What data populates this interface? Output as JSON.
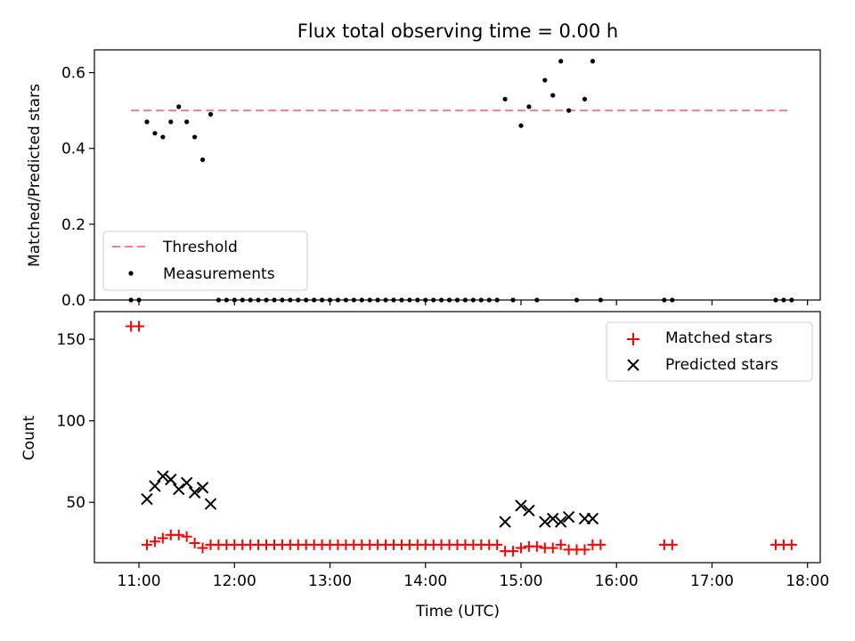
{
  "chart_data": [
    {
      "type": "scatter",
      "title": "Flux total observing time = 0.00 h",
      "xlabel": "",
      "ylabel": "Matched/Predicted stars",
      "xlim": [
        "10:32",
        "18:08"
      ],
      "ylim": [
        0,
        0.66
      ],
      "yticks": [
        0.0,
        0.2,
        0.4,
        0.6
      ],
      "ytick_labels": [
        "0.0",
        "0.2",
        "0.4",
        "0.6"
      ],
      "grid": false,
      "legend_position": "lower-left",
      "legend": [
        "Threshold",
        "Measurements"
      ],
      "series": [
        {
          "name": "Threshold",
          "kind": "dashed-line",
          "color": "#f08080",
          "x": [
            "10:55",
            "17:50"
          ],
          "y": [
            0.5,
            0.5
          ]
        },
        {
          "name": "Measurements",
          "kind": "points",
          "color": "#000000",
          "x": [
            "10:55",
            "11:00",
            "11:05",
            "11:10",
            "11:15",
            "11:20",
            "11:25",
            "11:30",
            "11:35",
            "11:40",
            "11:45",
            "11:50",
            "11:55",
            "12:00",
            "12:05",
            "12:10",
            "12:15",
            "12:20",
            "12:25",
            "12:30",
            "12:35",
            "12:40",
            "12:45",
            "12:50",
            "12:55",
            "13:00",
            "13:05",
            "13:10",
            "13:15",
            "13:20",
            "13:25",
            "13:30",
            "13:35",
            "13:40",
            "13:45",
            "13:50",
            "13:55",
            "14:00",
            "14:05",
            "14:10",
            "14:15",
            "14:20",
            "14:25",
            "14:30",
            "14:35",
            "14:40",
            "14:45",
            "14:50",
            "14:55",
            "15:00",
            "15:05",
            "15:10",
            "15:15",
            "15:20",
            "15:25",
            "15:30",
            "15:35",
            "15:40",
            "15:45",
            "15:50",
            "16:30",
            "16:35",
            "17:40",
            "17:45",
            "17:50"
          ],
          "y": [
            0,
            0,
            0.47,
            0.44,
            0.43,
            0.47,
            0.51,
            0.47,
            0.43,
            0.37,
            0.49,
            0,
            0,
            0,
            0,
            0,
            0,
            0,
            0,
            0,
            0,
            0,
            0,
            0,
            0,
            0,
            0,
            0,
            0,
            0,
            0,
            0,
            0,
            0,
            0,
            0,
            0,
            0,
            0,
            0,
            0,
            0,
            0,
            0,
            0,
            0,
            0,
            0.53,
            0,
            0.46,
            0.51,
            0,
            0.58,
            0.54,
            0.63,
            0.5,
            0,
            0.53,
            0.63,
            0,
            0,
            0,
            0,
            0,
            0
          ]
        }
      ]
    },
    {
      "type": "scatter",
      "title": "",
      "xlabel": "Time (UTC)",
      "ylabel": "Count",
      "xlim": [
        "10:32",
        "18:08"
      ],
      "ylim": [
        13,
        167
      ],
      "yticks": [
        50,
        100,
        150
      ],
      "ytick_labels": [
        "50",
        "100",
        "150"
      ],
      "xticks": [
        "11:00",
        "12:00",
        "13:00",
        "14:00",
        "15:00",
        "16:00",
        "17:00",
        "18:00"
      ],
      "xtick_labels": [
        "11:00",
        "12:00",
        "13:00",
        "14:00",
        "15:00",
        "16:00",
        "17:00",
        "18:00"
      ],
      "grid": false,
      "legend_position": "upper-right",
      "legend": [
        "Matched stars",
        "Predicted stars"
      ],
      "series": [
        {
          "name": "Matched stars",
          "kind": "plus",
          "color": "#ff0000",
          "x": [
            "10:55",
            "11:00",
            "11:05",
            "11:10",
            "11:15",
            "11:20",
            "11:25",
            "11:30",
            "11:35",
            "11:40",
            "11:45",
            "11:50",
            "11:55",
            "12:00",
            "12:05",
            "12:10",
            "12:15",
            "12:20",
            "12:25",
            "12:30",
            "12:35",
            "12:40",
            "12:45",
            "12:50",
            "12:55",
            "13:00",
            "13:05",
            "13:10",
            "13:15",
            "13:20",
            "13:25",
            "13:30",
            "13:35",
            "13:40",
            "13:45",
            "13:50",
            "13:55",
            "14:00",
            "14:05",
            "14:10",
            "14:15",
            "14:20",
            "14:25",
            "14:30",
            "14:35",
            "14:40",
            "14:45",
            "14:50",
            "14:55",
            "15:00",
            "15:05",
            "15:10",
            "15:15",
            "15:20",
            "15:25",
            "15:30",
            "15:35",
            "15:40",
            "15:45",
            "15:50",
            "16:30",
            "16:35",
            "17:40",
            "17:45",
            "17:50"
          ],
          "y": [
            158,
            158,
            24,
            26,
            28,
            30,
            30,
            29,
            25,
            22,
            24,
            24,
            24,
            24,
            24,
            24,
            24,
            24,
            24,
            24,
            24,
            24,
            24,
            24,
            24,
            24,
            24,
            24,
            24,
            24,
            24,
            24,
            24,
            24,
            24,
            24,
            24,
            24,
            24,
            24,
            24,
            24,
            24,
            24,
            24,
            24,
            24,
            20,
            20,
            22,
            23,
            23,
            22,
            22,
            24,
            21,
            21,
            21,
            24,
            24,
            24,
            24,
            24,
            24,
            24
          ]
        },
        {
          "name": "Predicted stars",
          "kind": "cross",
          "color": "#000000",
          "x": [
            "11:05",
            "11:10",
            "11:15",
            "11:20",
            "11:25",
            "11:30",
            "11:35",
            "11:40",
            "11:45",
            "14:50",
            "15:00",
            "15:05",
            "15:15",
            "15:20",
            "15:25",
            "15:30",
            "15:40",
            "15:45"
          ],
          "y": [
            52,
            60,
            66,
            64,
            58,
            62,
            56,
            59,
            49,
            38,
            48,
            45,
            38,
            40,
            38,
            41,
            40,
            40
          ]
        }
      ]
    }
  ]
}
